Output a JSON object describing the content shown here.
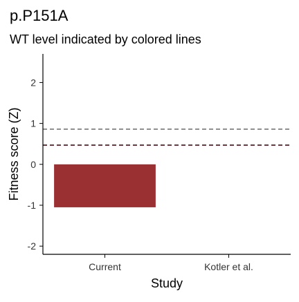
{
  "chart_data": {
    "type": "bar",
    "title": "p.P151A",
    "subtitle": "WT level indicated by colored lines",
    "xlabel": "Study",
    "ylabel": "Fitness score (Z)",
    "categories": [
      "Current",
      "Kotler et al."
    ],
    "values": [
      -1.05,
      null
    ],
    "ylim": [
      -2.2,
      2.7
    ],
    "yticks": [
      2,
      1,
      0,
      -1,
      -2
    ],
    "ytick_labels": [
      "2",
      "1",
      "0",
      "-1",
      "-2"
    ],
    "reference_lines": [
      {
        "y": 0.86,
        "color": "#7f7f7f",
        "style": "dashed"
      },
      {
        "y": 0.47,
        "color": "#5a1a22",
        "style": "dashed"
      }
    ],
    "grid": false,
    "bar_color": "#9b3033"
  }
}
